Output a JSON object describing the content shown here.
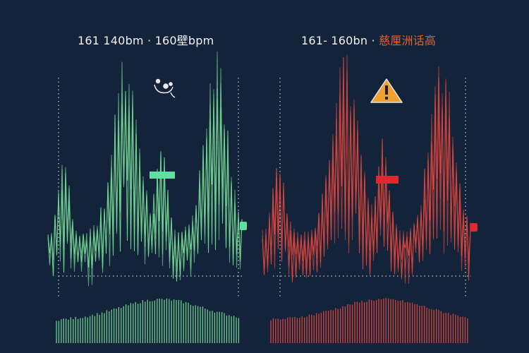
{
  "left_panel": {
    "title": "161 140bm · 160",
    "title_glyph": "壁",
    "title_unit": "bpm",
    "color": "#6fd08e",
    "marker_color": "#5ee0a0",
    "icon": "face-sketch-icon"
  },
  "right_panel": {
    "title": "161- 160bn ·",
    "title_warning": "慈厘洲话高",
    "color": "#d9443a",
    "marker_color": "#e0282e",
    "warning_color": "#f0a030",
    "icon": "warning-triangle-icon"
  },
  "background": "#13233a"
}
